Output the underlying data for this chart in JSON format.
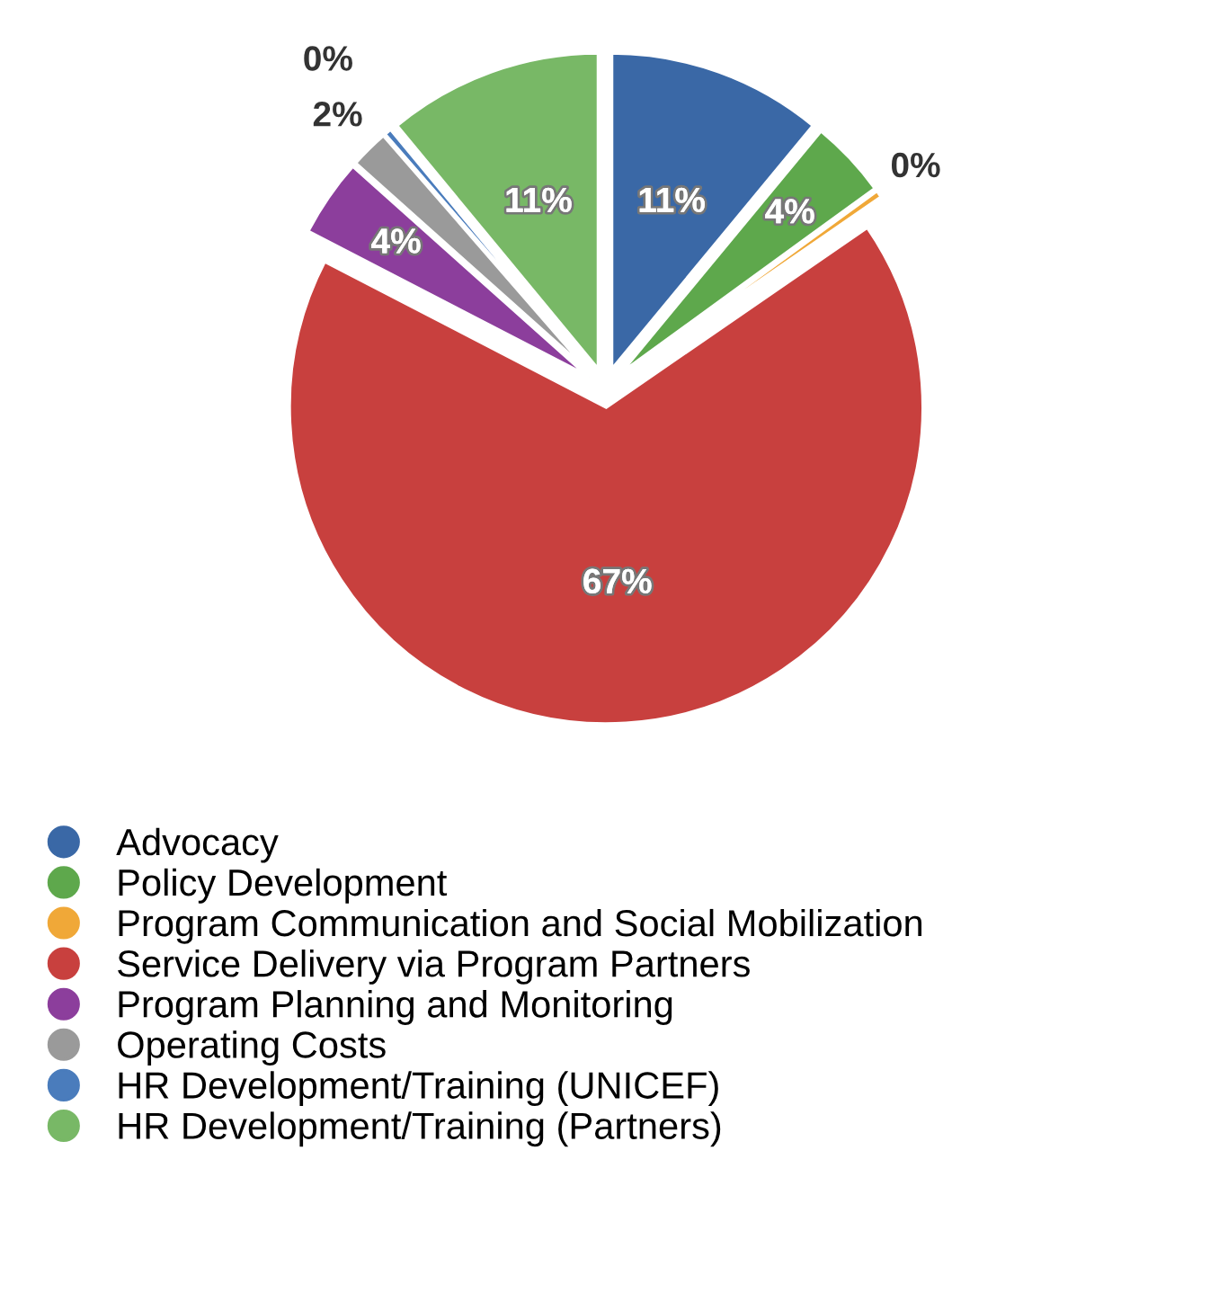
{
  "chart_data": {
    "type": "pie",
    "categories": [
      "Advocacy",
      "Policy Development",
      "Program Communication and Social Mobilization",
      "Service Delivery via Program Partners",
      "Program Planning and Monitoring",
      "Operating Costs",
      "HR Development/Training (UNICEF)",
      "HR Development/Training (Partners)"
    ],
    "values": [
      11,
      4,
      0.4,
      67.2,
      4,
      2,
      0.4,
      11
    ],
    "value_labels": [
      "11%",
      "4%",
      "0%",
      "67%",
      "4%",
      "2%",
      "0%",
      "11%"
    ],
    "colors": [
      "#3a68a6",
      "#5ea84c",
      "#f0a838",
      "#c8403e",
      "#8c3e9c",
      "#9a9a9a",
      "#4a7cbc",
      "#78b866"
    ],
    "legend": "bottom"
  }
}
